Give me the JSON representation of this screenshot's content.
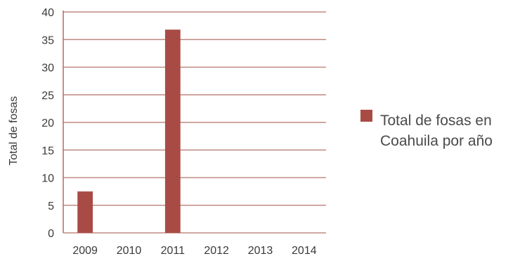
{
  "chart_data": {
    "type": "bar",
    "categories": [
      "2009",
      "2010",
      "2011",
      "2012",
      "2013",
      "2014"
    ],
    "series": [
      {
        "name": "Total de fosas en Coahuila por año",
        "values": [
          7.5,
          0,
          36.8,
          0,
          0,
          0
        ],
        "color": "#a94b45"
      }
    ],
    "ylabel": "Total de fosas",
    "xlabel": "",
    "ylim": [
      0,
      40
    ],
    "yticks": [
      0,
      5,
      10,
      15,
      20,
      25,
      30,
      35,
      40
    ],
    "grid": true,
    "grid_color": "#c08a84",
    "axis_color": "#b06a63",
    "legend_position": "right",
    "legend_lines": [
      "Total de fosas en",
      "Coahuila por año"
    ]
  }
}
